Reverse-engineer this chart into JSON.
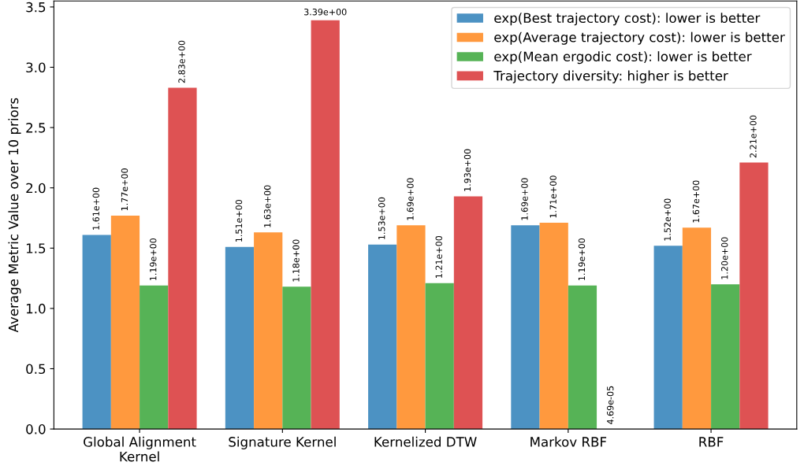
{
  "chart_data": {
    "type": "bar",
    "ylabel": "Average Metric Value over 10 priors",
    "categories": [
      "Global Alignment\nKernel",
      "Signature Kernel",
      "Kernelized DTW",
      "Markov RBF",
      "RBF"
    ],
    "series": [
      {
        "name": "exp(Best trajectory cost): lower is better",
        "color": "#4c92c3",
        "values": [
          1.61,
          1.51,
          1.53,
          1.69,
          1.52
        ],
        "value_labels": [
          "1.61e+00",
          "1.51e+00",
          "1.53e+00",
          "1.69e+00",
          "1.52e+00"
        ]
      },
      {
        "name": "exp(Average trajectory cost): lower is better",
        "color": "#ff993e",
        "values": [
          1.77,
          1.63,
          1.69,
          1.71,
          1.67
        ],
        "value_labels": [
          "1.77e+00",
          "1.63e+00",
          "1.69e+00",
          "1.71e+00",
          "1.67e+00"
        ]
      },
      {
        "name": "exp(Mean ergodic cost): lower is better",
        "color": "#56b356",
        "values": [
          1.19,
          1.18,
          1.21,
          1.19,
          1.2
        ],
        "value_labels": [
          "1.19e+00",
          "1.18e+00",
          "1.21e+00",
          "1.19e+00",
          "1.20e+00"
        ]
      },
      {
        "name": "Trajectory diversity: higher is better",
        "color": "#de5253",
        "values": [
          2.83,
          3.39,
          1.93,
          4.69e-05,
          2.21
        ],
        "value_labels": [
          "2.83e+00",
          "3.39e+00",
          "1.93e+00",
          "4.69e-05",
          "2.21e+00"
        ]
      }
    ],
    "ylim": [
      0,
      3.55
    ],
    "yticks": [
      {
        "value": 0,
        "label": "0.0"
      },
      {
        "value": 0.5,
        "label": "0.5"
      },
      {
        "value": 1,
        "label": "1.0"
      },
      {
        "value": 1.5,
        "label": "1.5"
      },
      {
        "value": 2,
        "label": "2.0"
      },
      {
        "value": 2.5,
        "label": "2.5"
      },
      {
        "value": 3,
        "label": "3.0"
      },
      {
        "value": 3.5,
        "label": "3.5"
      }
    ],
    "legend": "top right",
    "grid": false
  }
}
